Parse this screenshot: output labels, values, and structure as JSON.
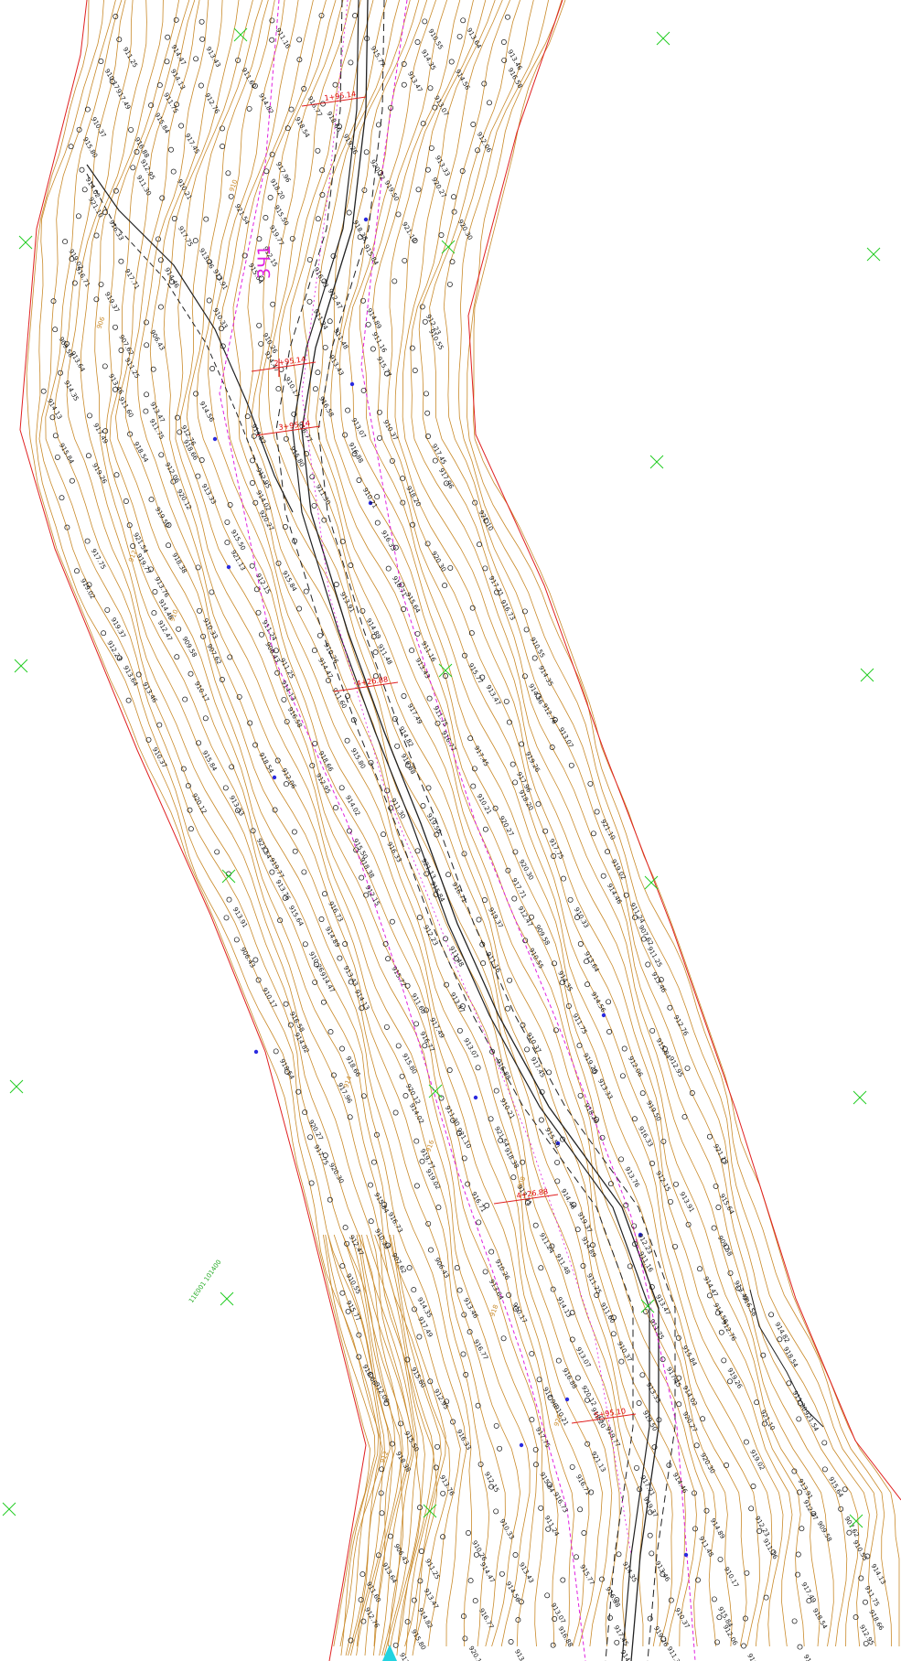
{
  "map": {
    "corridor_label": "3Ч1",
    "stations": [
      "1+95.14",
      "2+95.14",
      "3+95.14",
      "4+26.88",
      "4+26.88",
      "5+95.10"
    ],
    "grid_label": "11E001\n101400",
    "contour_labels": [
      "910",
      "912",
      "914",
      "916",
      "918",
      "920",
      "906",
      "908"
    ],
    "elevations": [
      "911.16",
      "910.55",
      "913.64",
      "911.25",
      "914.47",
      "913.43",
      "915.77",
      "914.35",
      "913.46",
      "910.17",
      "914.13",
      "911.60",
      "913.47",
      "914.56",
      "916.58",
      "917.49",
      "911.75",
      "912.76",
      "914.82",
      "916.77",
      "913.07",
      "910.37",
      "915.84",
      "918.54",
      "918.66",
      "915.80",
      "916.88",
      "917.45",
      "919.26",
      "912.06",
      "912.95",
      "917.96",
      "920.12",
      "913.33",
      "914.02",
      "911.30",
      "910.21",
      "918.20",
      "919.50",
      "920.27",
      "921.10",
      "921.54",
      "915.50",
      "916.33",
      "917.75",
      "919.77",
      "918.38",
      "921.13",
      "920.30",
      "919.02",
      "913.76",
      "912.15",
      "915.84",
      "916.71",
      "917.71",
      "914.46",
      "913.91",
      "915.64",
      "916.73",
      "919.37",
      "912.47",
      "910.33",
      "911.24",
      "914.89",
      "912.23",
      "909.58",
      "907.62",
      "906.43",
      "910.26",
      "911.48"
    ],
    "colors": {
      "boundary": "#e02020",
      "contour": "#c98a2a",
      "road": "#222222",
      "centerline": "#e020e0",
      "survey_point": "#2a2ae0",
      "grid_cross": "#22cc22"
    }
  }
}
